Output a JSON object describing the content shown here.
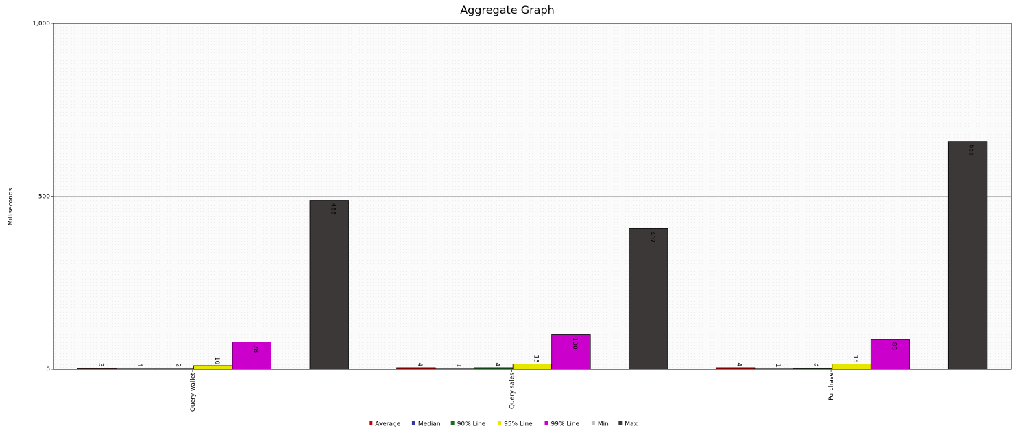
{
  "chart_data": {
    "type": "bar",
    "title": "Aggregate Graph",
    "ylabel": "Milliseconds",
    "xlabel": "",
    "ylim": [
      0,
      1000
    ],
    "yticks": [
      "0",
      "500",
      "1,000"
    ],
    "ytick_values": [
      0,
      500,
      1000
    ],
    "grid": true,
    "legend_position": "bottom",
    "categories": [
      "Query wallet",
      "Query sales",
      "Purchase"
    ],
    "series": [
      {
        "name": "Average",
        "color": "#cc0000",
        "values": [
          3,
          4,
          4
        ]
      },
      {
        "name": "Median",
        "color": "#3333aa",
        "values": [
          1,
          1,
          1
        ]
      },
      {
        "name": "90% Line",
        "color": "#1f6b1f",
        "values": [
          2,
          4,
          3
        ]
      },
      {
        "name": "95% Line",
        "color": "#e6e600",
        "values": [
          10,
          15,
          15
        ]
      },
      {
        "name": "99% Line",
        "color": "#cc00cc",
        "values": [
          78,
          100,
          86
        ]
      },
      {
        "name": "Min",
        "color": "#c0c0c0",
        "values": [
          0,
          0,
          0
        ]
      },
      {
        "name": "Max",
        "color": "#3d3838",
        "values": [
          488,
          407,
          658
        ]
      }
    ],
    "data_labels": [
      [
        "3",
        "4",
        "4"
      ],
      [
        "1",
        "1",
        "1"
      ],
      [
        "2",
        "4",
        "3"
      ],
      [
        "10",
        "15",
        "15"
      ],
      [
        "78",
        "100",
        "86"
      ],
      [
        "",
        "",
        ""
      ],
      [
        "488",
        "407",
        "658"
      ]
    ]
  }
}
